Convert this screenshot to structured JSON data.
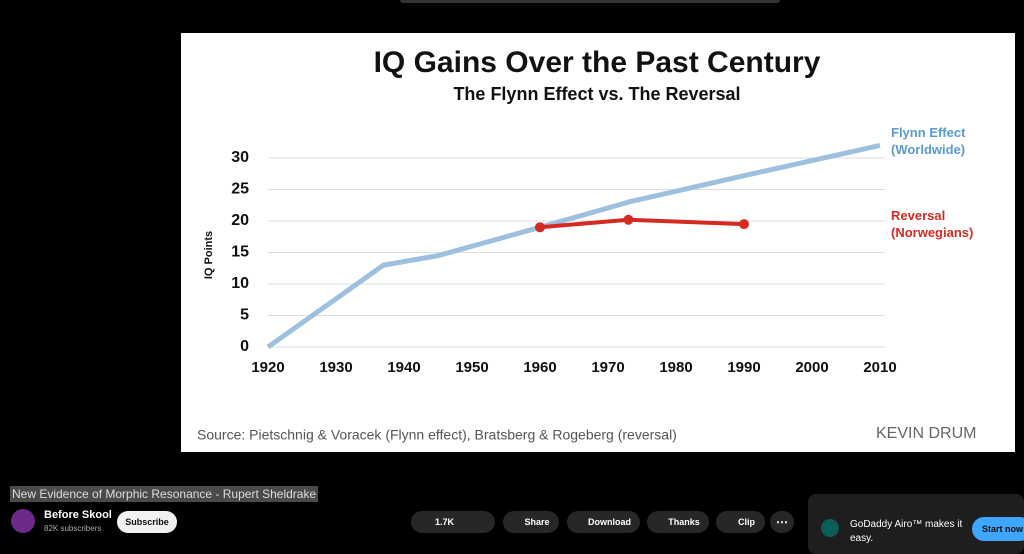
{
  "chart_data": {
    "type": "line",
    "title": "IQ Gains Over the Past Century",
    "subtitle": "The Flynn Effect vs. The Reversal",
    "y_label": "IQ Points",
    "source": "Source: Pietschnig & Voracek (Flynn effect), Bratsberg & Rogeberg (reversal)",
    "credit": "KEVIN DRUM",
    "x": [
      1920,
      1937,
      1945,
      1960,
      1973,
      1990,
      2010
    ],
    "series": [
      {
        "name": "Flynn Effect (Worldwide)",
        "color": "#9dc0df",
        "values": [
          0,
          13,
          14.5,
          19,
          23,
          27.2,
          32
        ]
      },
      {
        "name": "Reversal (Norwegians)",
        "color": "#d42a22",
        "values": [
          null,
          null,
          null,
          19,
          20.2,
          19.5,
          null
        ]
      }
    ],
    "xlim": [
      1920,
      2010
    ],
    "xticks": [
      1920,
      1930,
      1940,
      1950,
      1960,
      1970,
      1980,
      1990,
      2000,
      2010
    ],
    "ylim": [
      0,
      32
    ],
    "yticks": [
      0,
      5,
      10,
      15,
      20,
      25,
      30
    ],
    "grid": true
  },
  "video": {
    "title": "New Evidence of Morphic Resonance - Rupert Sheldrake",
    "channel": "Before Skool",
    "subscribers": "82K subscribers",
    "subscribe": "Subscribe",
    "likes": "1.7K",
    "actions": [
      "Share",
      "Download",
      "Thanks",
      "Clip"
    ]
  },
  "ad": {
    "text": "GoDaddy Airo™ makes it easy.",
    "button": "Start now"
  }
}
